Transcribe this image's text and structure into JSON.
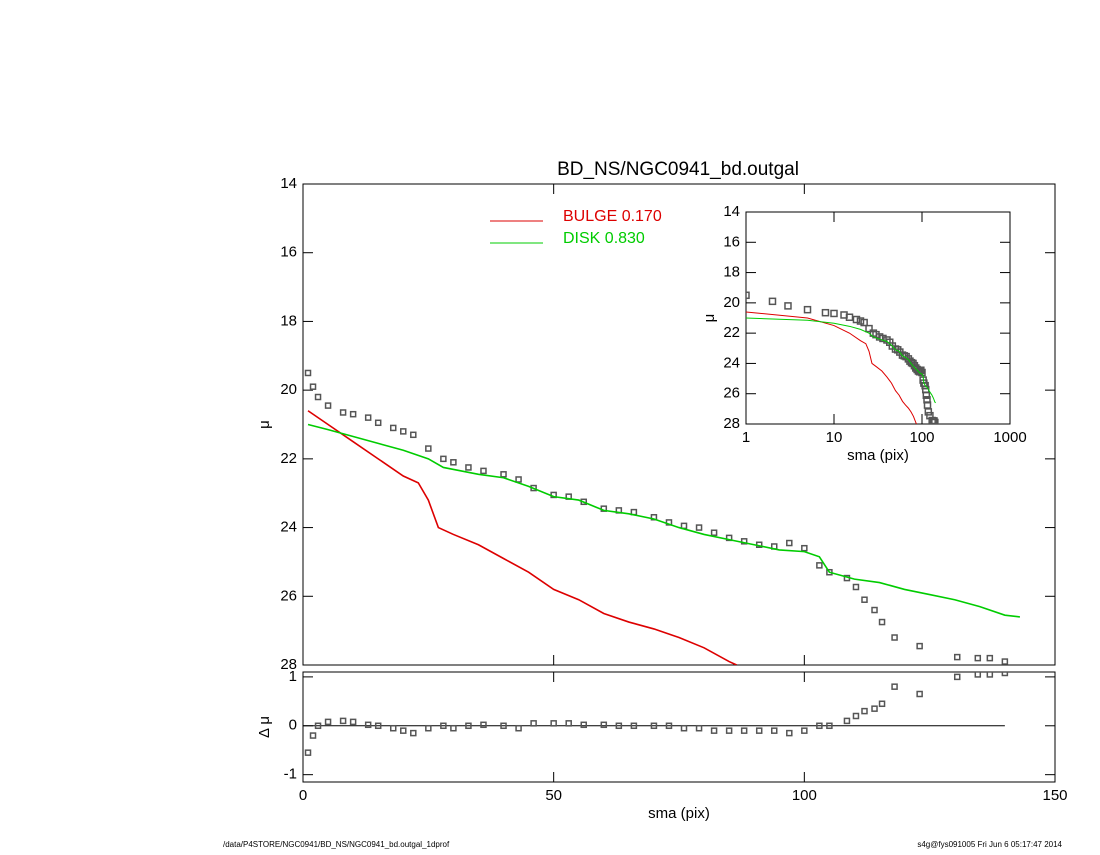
{
  "chart_data": [
    {
      "type": "line",
      "title": "BD_NS/NGC0941_bd.outgal",
      "ylabel": "μ",
      "xlim": [
        0,
        150
      ],
      "ylim": [
        28,
        14
      ],
      "yticks": [
        14,
        16,
        18,
        20,
        22,
        24,
        26,
        28
      ],
      "legend": "upper center",
      "series": [
        {
          "color": "#555555",
          "marker": "square",
          "x": [
            1,
            2,
            3,
            5,
            8,
            10,
            13,
            15,
            18,
            20,
            22,
            25,
            28,
            30,
            33,
            36,
            40,
            43,
            46,
            50,
            53,
            56,
            60,
            63,
            66,
            70,
            73,
            76,
            79,
            82,
            85,
            88,
            91,
            94,
            97,
            100,
            103,
            105,
            108.5,
            110.3,
            112,
            114,
            115.5,
            118,
            123,
            130.5,
            134.6,
            137,
            140
          ],
          "values": [
            19.5,
            19.9,
            20.2,
            20.45,
            20.65,
            20.7,
            20.8,
            20.95,
            21.1,
            21.2,
            21.3,
            21.7,
            22.0,
            22.1,
            22.25,
            22.35,
            22.45,
            22.6,
            22.85,
            23.05,
            23.1,
            23.25,
            23.45,
            23.5,
            23.55,
            23.7,
            23.85,
            23.95,
            24.0,
            24.15,
            24.3,
            24.4,
            24.5,
            24.55,
            24.45,
            24.6,
            25.1,
            25.3,
            25.47,
            25.73,
            26.1,
            26.4,
            26.75,
            27.2,
            27.45,
            27.77,
            27.8,
            27.8,
            27.9
          ]
        },
        {
          "name": "BULGE  0.170",
          "color": "#dd0000",
          "x": [
            1,
            5,
            10,
            15,
            20,
            23,
            25,
            27,
            30,
            35,
            40,
            45,
            50,
            55,
            60,
            65,
            70,
            75,
            80,
            85,
            86.5
          ],
          "values": [
            20.6,
            21.0,
            21.5,
            22.0,
            22.5,
            22.7,
            23.2,
            24.0,
            24.2,
            24.5,
            24.9,
            25.3,
            25.8,
            26.1,
            26.5,
            26.75,
            26.95,
            27.2,
            27.5,
            27.9,
            28.0
          ]
        },
        {
          "name": "DISK  0.830",
          "color": "#00cc00",
          "x": [
            1,
            5,
            10,
            15,
            20,
            25,
            28,
            35,
            40,
            45,
            50,
            55,
            60,
            65,
            70,
            75,
            80,
            85,
            90,
            95,
            100,
            103,
            105,
            110,
            115,
            120,
            125,
            130,
            135,
            140,
            143
          ],
          "values": [
            21.0,
            21.15,
            21.35,
            21.55,
            21.75,
            22.0,
            22.25,
            22.45,
            22.55,
            22.8,
            23.1,
            23.2,
            23.5,
            23.6,
            23.75,
            24.0,
            24.2,
            24.35,
            24.5,
            24.65,
            24.7,
            24.85,
            25.3,
            25.5,
            25.6,
            25.8,
            25.95,
            26.1,
            26.3,
            26.55,
            26.6
          ]
        }
      ]
    },
    {
      "type": "scatter",
      "xlabel": "sma (pix)",
      "ylabel": "Δ μ",
      "xlim": [
        0,
        150
      ],
      "xticks": [
        0,
        50,
        100,
        150
      ],
      "ylim": [
        -1.15,
        1.1
      ],
      "yticks": [
        -1,
        0,
        1
      ],
      "color": "#555555",
      "x": [
        1,
        2,
        3,
        5,
        8,
        10,
        13,
        15,
        18,
        20,
        22,
        25,
        28,
        30,
        33,
        36,
        40,
        43,
        46,
        50,
        53,
        56,
        60,
        63,
        66,
        70,
        73,
        76,
        79,
        82,
        85,
        88,
        91,
        94,
        97,
        100,
        103,
        105,
        108.5,
        110.3,
        112,
        114,
        115.5,
        118,
        123,
        130.5,
        134.6,
        137,
        140
      ],
      "values": [
        -0.55,
        -0.2,
        0,
        0.08,
        0.1,
        0.08,
        0.02,
        0,
        -0.05,
        -0.1,
        -0.15,
        -0.05,
        0.0,
        -0.05,
        0.0,
        0.02,
        0.0,
        -0.05,
        0.05,
        0.05,
        0.05,
        0.02,
        0.02,
        0.0,
        0.0,
        0.0,
        0.0,
        -0.05,
        -0.05,
        -0.1,
        -0.1,
        -0.1,
        -0.1,
        -0.1,
        -0.15,
        -0.1,
        0.0,
        0.0,
        0.1,
        0.2,
        0.3,
        0.35,
        0.45,
        0.8,
        0.65,
        1.0,
        1.05,
        1.05,
        1.08
      ]
    },
    {
      "type": "line",
      "xlabel": "sma (pix)",
      "ylabel": "μ",
      "xlog": true,
      "xlim": [
        1,
        1000
      ],
      "xticks": [
        1,
        10,
        100,
        1000
      ],
      "ylim": [
        28,
        14
      ],
      "yticks": [
        14,
        16,
        18,
        20,
        22,
        24,
        26,
        28
      ]
    }
  ],
  "footer": {
    "left": "/data/P4STORE/NGC0941/BD_NS/NGC0941_bd.outgal_1dprof",
    "right": "s4g@fys091005  Fri Jun  6 05:17:47 2014"
  }
}
